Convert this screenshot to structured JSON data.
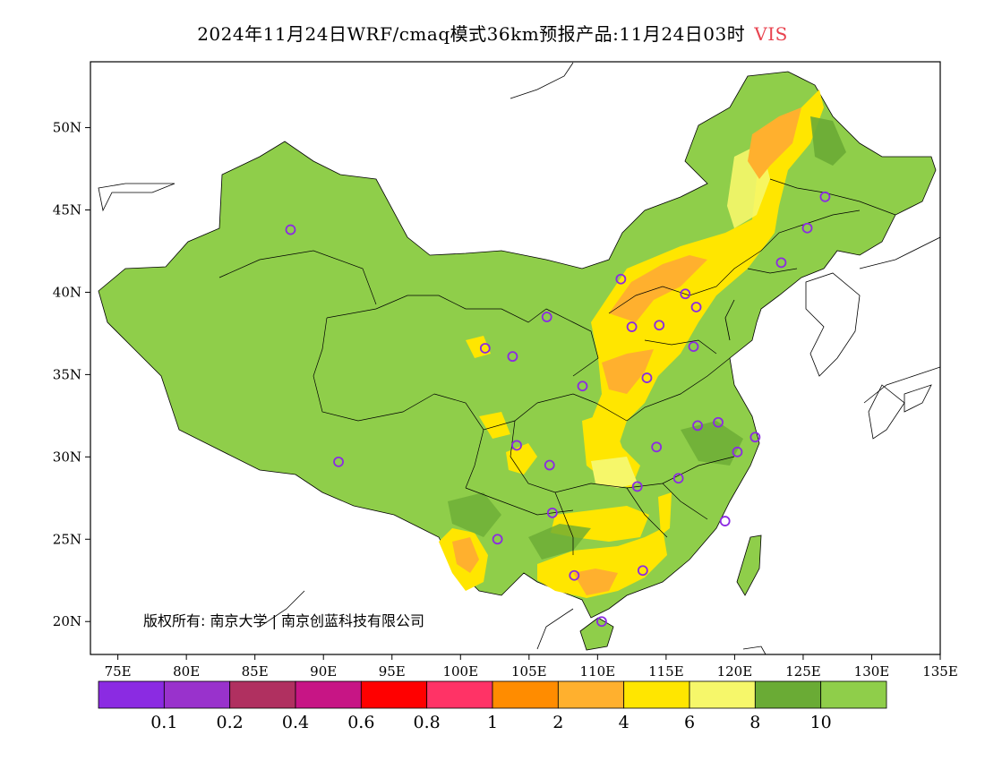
{
  "title": {
    "main": "2024年11月24日WRF/cmaq模式36km预报产品:11月24日03时",
    "variable": "VIS",
    "variable_color": "#e8434f"
  },
  "map": {
    "lon_ticks": [
      "75E",
      "80E",
      "85E",
      "90E",
      "95E",
      "100E",
      "105E",
      "110E",
      "115E",
      "120E",
      "125E",
      "130E",
      "135E"
    ],
    "lat_ticks": [
      "50N",
      "45N",
      "40N",
      "35N",
      "30N",
      "25N",
      "20N"
    ],
    "lon_range": [
      73,
      135
    ],
    "lat_range": [
      18,
      54
    ],
    "land_color": "#8fce4a"
  },
  "stations": [
    {
      "lon": 87.6,
      "lat": 43.8
    },
    {
      "lon": 91.1,
      "lat": 29.7
    },
    {
      "lon": 101.8,
      "lat": 36.6
    },
    {
      "lon": 103.8,
      "lat": 36.1
    },
    {
      "lon": 106.3,
      "lat": 38.5
    },
    {
      "lon": 111.7,
      "lat": 40.8
    },
    {
      "lon": 116.4,
      "lat": 39.9
    },
    {
      "lon": 117.2,
      "lat": 39.1
    },
    {
      "lon": 114.5,
      "lat": 38.0
    },
    {
      "lon": 112.5,
      "lat": 37.9
    },
    {
      "lon": 117.0,
      "lat": 36.7
    },
    {
      "lon": 113.6,
      "lat": 34.8
    },
    {
      "lon": 108.9,
      "lat": 34.3
    },
    {
      "lon": 117.3,
      "lat": 31.9
    },
    {
      "lon": 118.8,
      "lat": 32.1
    },
    {
      "lon": 121.5,
      "lat": 31.2
    },
    {
      "lon": 120.2,
      "lat": 30.3
    },
    {
      "lon": 114.3,
      "lat": 30.6
    },
    {
      "lon": 104.1,
      "lat": 30.7
    },
    {
      "lon": 106.5,
      "lat": 29.5
    },
    {
      "lon": 112.9,
      "lat": 28.2
    },
    {
      "lon": 115.9,
      "lat": 28.7
    },
    {
      "lon": 106.7,
      "lat": 26.6
    },
    {
      "lon": 102.7,
      "lat": 25.0
    },
    {
      "lon": 119.3,
      "lat": 26.1
    },
    {
      "lon": 108.3,
      "lat": 22.8
    },
    {
      "lon": 113.3,
      "lat": 23.1
    },
    {
      "lon": 110.3,
      "lat": 20.0
    },
    {
      "lon": 123.4,
      "lat": 41.8
    },
    {
      "lon": 125.3,
      "lat": 43.9
    },
    {
      "lon": 126.6,
      "lat": 45.8
    }
  ],
  "colorbar": {
    "colors": [
      "#8b2be2",
      "#9932cc",
      "#b03060",
      "#c71585",
      "#ff0000",
      "#ff3366",
      "#ff8c00",
      "#ffb02e",
      "#ffe600",
      "#f6f76a",
      "#6aab35",
      "#8fce4a"
    ],
    "labels": [
      "0.1",
      "0.2",
      "0.4",
      "0.6",
      "0.8",
      "1",
      "2",
      "4",
      "6",
      "8",
      "10"
    ]
  },
  "copyright": "版权所有: 南京大学 | 南京创蓝科技有限公司"
}
